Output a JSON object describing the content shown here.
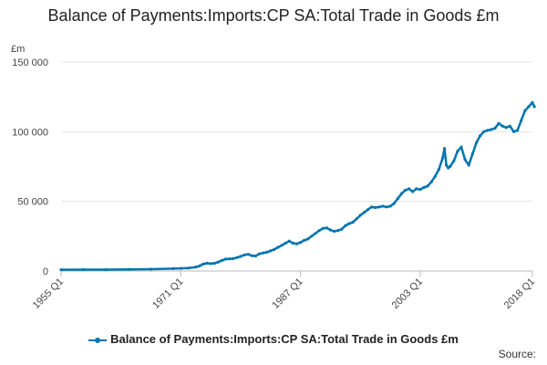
{
  "chart_data": {
    "type": "line",
    "title": "Balance of Payments:Imports:CP SA:Total Trade in Goods £m",
    "unit_label": "£m",
    "x_ticks": [
      "1955 Q1",
      "1971 Q1",
      "1987 Q1",
      "2003 Q1",
      "2018 Q1"
    ],
    "y_ticks": [
      "0",
      "50 000",
      "100 000",
      "150 000"
    ],
    "ylim": [
      0,
      150000
    ],
    "x_range": [
      "1955 Q1",
      "2018 Q1"
    ],
    "grid": "horizontal",
    "legend_position": "bottom",
    "series": [
      {
        "name": "Balance of Payments:Imports:CP SA:Total Trade in Goods £m",
        "color": "#0075b0",
        "points": [
          [
            "1955 Q1",
            900
          ],
          [
            "1958 Q1",
            950
          ],
          [
            "1961 Q1",
            1000
          ],
          [
            "1964 Q1",
            1150
          ],
          [
            "1967 Q1",
            1300
          ],
          [
            "1970 Q1",
            1700
          ],
          [
            "1971 Q1",
            1900
          ],
          [
            "1972 Q1",
            2100
          ],
          [
            "1973 Q1",
            2800
          ],
          [
            "1973 Q3",
            3600
          ],
          [
            "1974 Q1",
            5000
          ],
          [
            "1974 Q3",
            5600
          ],
          [
            "1975 Q1",
            5300
          ],
          [
            "1975 Q3",
            5500
          ],
          [
            "1976 Q1",
            6400
          ],
          [
            "1976 Q3",
            7600
          ],
          [
            "1977 Q1",
            8600
          ],
          [
            "1977 Q3",
            8700
          ],
          [
            "1978 Q1",
            8900
          ],
          [
            "1978 Q3",
            9600
          ],
          [
            "1979 Q1",
            10500
          ],
          [
            "1979 Q3",
            11500
          ],
          [
            "1980 Q1",
            12000
          ],
          [
            "1980 Q3",
            11000
          ],
          [
            "1981 Q1",
            10800
          ],
          [
            "1981 Q3",
            12300
          ],
          [
            "1982 Q1",
            13000
          ],
          [
            "1982 Q3",
            13500
          ],
          [
            "1983 Q1",
            14500
          ],
          [
            "1983 Q3",
            15500
          ],
          [
            "1984 Q1",
            17000
          ],
          [
            "1984 Q3",
            18500
          ],
          [
            "1985 Q1",
            20000
          ],
          [
            "1985 Q3",
            21500
          ],
          [
            "1986 Q1",
            20000
          ],
          [
            "1986 Q3",
            19500
          ],
          [
            "1987 Q1",
            20500
          ],
          [
            "1987 Q3",
            22000
          ],
          [
            "1988 Q1",
            23000
          ],
          [
            "1988 Q3",
            25000
          ],
          [
            "1989 Q1",
            27000
          ],
          [
            "1989 Q3",
            29000
          ],
          [
            "1990 Q1",
            30500
          ],
          [
            "1990 Q3",
            31000
          ],
          [
            "1991 Q1",
            29500
          ],
          [
            "1991 Q3",
            28500
          ],
          [
            "1992 Q1",
            29000
          ],
          [
            "1992 Q3",
            30000
          ],
          [
            "1993 Q1",
            32500
          ],
          [
            "1993 Q3",
            34000
          ],
          [
            "1994 Q1",
            35000
          ],
          [
            "1994 Q3",
            37500
          ],
          [
            "1995 Q1",
            40000
          ],
          [
            "1995 Q3",
            42000
          ],
          [
            "1996 Q1",
            44000
          ],
          [
            "1996 Q3",
            46000
          ],
          [
            "1997 Q1",
            45500
          ],
          [
            "1997 Q3",
            46000
          ],
          [
            "1998 Q1",
            46500
          ],
          [
            "1998 Q3",
            46000
          ],
          [
            "1999 Q1",
            46500
          ],
          [
            "1999 Q3",
            48500
          ],
          [
            "2000 Q1",
            52000
          ],
          [
            "2000 Q3",
            55500
          ],
          [
            "2001 Q1",
            58000
          ],
          [
            "2001 Q3",
            59000
          ],
          [
            "2002 Q1",
            57000
          ],
          [
            "2002 Q3",
            59000
          ],
          [
            "2003 Q1",
            58500
          ],
          [
            "2003 Q3",
            60000
          ],
          [
            "2004 Q1",
            61000
          ],
          [
            "2004 Q3",
            64000
          ],
          [
            "2005 Q1",
            68000
          ],
          [
            "2005 Q3",
            73000
          ],
          [
            "2006 Q1",
            81000
          ],
          [
            "2006 Q2",
            88000
          ],
          [
            "2006 Q3",
            76000
          ],
          [
            "2006 Q4",
            74000
          ],
          [
            "2007 Q1",
            75000
          ],
          [
            "2007 Q3",
            79000
          ],
          [
            "2008 Q1",
            86000
          ],
          [
            "2008 Q3",
            89000
          ],
          [
            "2009 Q1",
            80000
          ],
          [
            "2009 Q3",
            76000
          ],
          [
            "2010 Q1",
            84000
          ],
          [
            "2010 Q3",
            92000
          ],
          [
            "2011 Q1",
            97000
          ],
          [
            "2011 Q3",
            100000
          ],
          [
            "2012 Q1",
            101000
          ],
          [
            "2012 Q3",
            101500
          ],
          [
            "2013 Q1",
            102500
          ],
          [
            "2013 Q3",
            106000
          ],
          [
            "2014 Q1",
            104000
          ],
          [
            "2014 Q3",
            103000
          ],
          [
            "2015 Q1",
            104000
          ],
          [
            "2015 Q3",
            100000
          ],
          [
            "2016 Q1",
            101000
          ],
          [
            "2016 Q3",
            108000
          ],
          [
            "2017 Q1",
            115000
          ],
          [
            "2017 Q3",
            118000
          ],
          [
            "2018 Q1",
            121000
          ],
          [
            "2018 Q2",
            118000
          ]
        ]
      }
    ]
  },
  "legend_label": "Balance of Payments:Imports:CP SA:Total Trade in Goods £m",
  "source_label": "Source:"
}
